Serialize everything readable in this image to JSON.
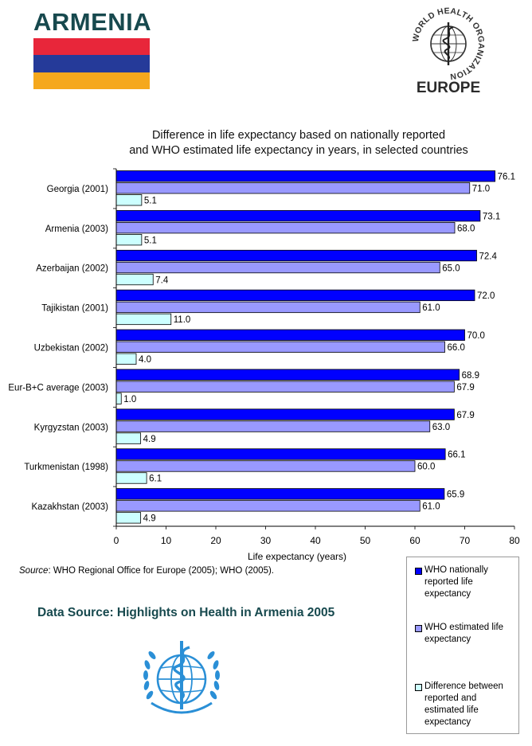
{
  "header": {
    "country": "ARMENIA",
    "flag_colors": [
      "#e8263a",
      "#253a99",
      "#f5a81d"
    ],
    "who_logo": {
      "ring_text": "WORLD HEALTH ORGANIZATION",
      "region": "EUROPE"
    }
  },
  "chart_data": {
    "type": "bar",
    "orientation": "horizontal",
    "title": "Difference in life expectancy based on nationally reported and  WHO estimated life expectancy in years, in selected countries",
    "title_lines": [
      "Difference in life expectancy based on nationally reported",
      "and  WHO estimated life expectancy in years, in selected countries"
    ],
    "categories": [
      "Georgia (2001)",
      "Armenia (2003)",
      "Azerbaijan (2002)",
      "Tajikistan (2001)",
      "Uzbekistan (2002)",
      "Eur-B+C average (2003)",
      "Kyrgyzstan (2003)",
      "Turkmenistan (1998)",
      "Kazakhstan (2003)"
    ],
    "series": [
      {
        "name": "WHO nationally reported life expectancy",
        "color": "#0000ff",
        "values": [
          76.1,
          73.1,
          72.4,
          72.0,
          70.0,
          68.9,
          67.9,
          66.1,
          65.9
        ],
        "labels": [
          "76.1",
          "73.1",
          "72.4",
          "72.0",
          "70.0",
          "68.9",
          "67.9",
          "66.1",
          "65.9"
        ]
      },
      {
        "name": "WHO estimated life expectancy",
        "color": "#9999ff",
        "values": [
          71.0,
          68.0,
          65.0,
          61.0,
          66.0,
          67.9,
          63.0,
          60.0,
          61.0
        ],
        "labels": [
          "71.0",
          "68.0",
          "65.0",
          "61.0",
          "66.0",
          "67.9",
          "63.0",
          "60.0",
          "61.0"
        ]
      },
      {
        "name": "Difference between reported and estimated life expectancy",
        "color": "#ccffff",
        "values": [
          5.1,
          5.1,
          7.4,
          11.0,
          4.0,
          1.0,
          4.9,
          6.1,
          4.9
        ],
        "labels": [
          "5.1",
          "5.1",
          "7.4",
          "11.0",
          "4.0",
          "1.0",
          "4.9",
          "6.1",
          "4.9"
        ]
      }
    ],
    "xlabel": "Life expectancy (years)",
    "xlim": [
      0,
      80
    ],
    "xticks": [
      0,
      10,
      20,
      30,
      40,
      50,
      60,
      70,
      80
    ],
    "xtick_labels": [
      "0",
      "10",
      "20",
      "30",
      "40",
      "50",
      "60",
      "70",
      "80"
    ],
    "grid": false,
    "legend_position": "bottom-right",
    "legend_lines": [
      [
        "WHO nationally",
        "reported life",
        "expectancy"
      ],
      [
        "WHO estimated life",
        "expectancy"
      ],
      [
        "Difference between",
        "reported and",
        "estimated life",
        "expectancy"
      ]
    ]
  },
  "source": {
    "label": "Source",
    "text": ": WHO Regional Office for Europe (2005); WHO (2005)."
  },
  "footer": {
    "data_source": "Data Source:  Highlights on Health in Armenia 2005"
  }
}
